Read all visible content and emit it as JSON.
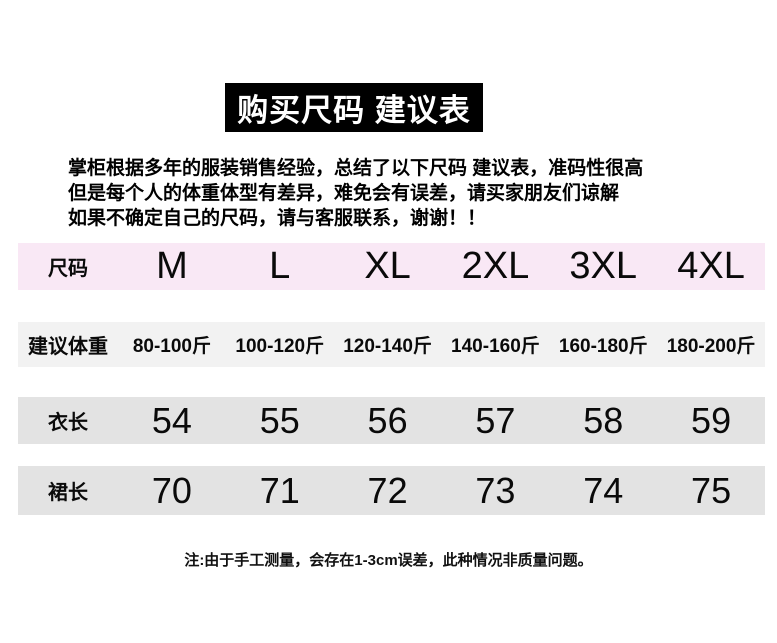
{
  "title": "购买尺码 建议表",
  "description": {
    "lines": [
      "掌柜根据多年的服装销售经验，总结了以下尺码 建议表，准码性很高",
      "但是每个人的体重体型有差异，难免会有误差，请买家朋友们谅解",
      "如果不确定自己的尺码，请与客服联系，谢谢！！"
    ]
  },
  "size_table": {
    "rows": [
      {
        "label": "尺码",
        "values": [
          "M",
          "L",
          "XL",
          "2XL",
          "3XL",
          "4XL"
        ]
      },
      {
        "label": "建议体重",
        "values": [
          "80-100斤",
          "100-120斤",
          "120-140斤",
          "140-160斤",
          "160-180斤",
          "180-200斤"
        ]
      },
      {
        "label": "衣长",
        "values": [
          "54",
          "55",
          "56",
          "57",
          "58",
          "59"
        ]
      },
      {
        "label": "裙长",
        "values": [
          "70",
          "71",
          "72",
          "73",
          "74",
          "75"
        ]
      }
    ]
  },
  "footnote": "注:由于手工测量，会存在1-3cm误差，此种情况非质量问题。",
  "colors": {
    "title_bg": "#000000",
    "title_text": "#ffffff",
    "row_size_bg": "#f9e8f5",
    "row_weight_bg": "#f2f2f2",
    "row_length_bg": "#e3e3e3",
    "row_skirt_bg": "#e3e3e3",
    "text": "#0a0a0a"
  }
}
